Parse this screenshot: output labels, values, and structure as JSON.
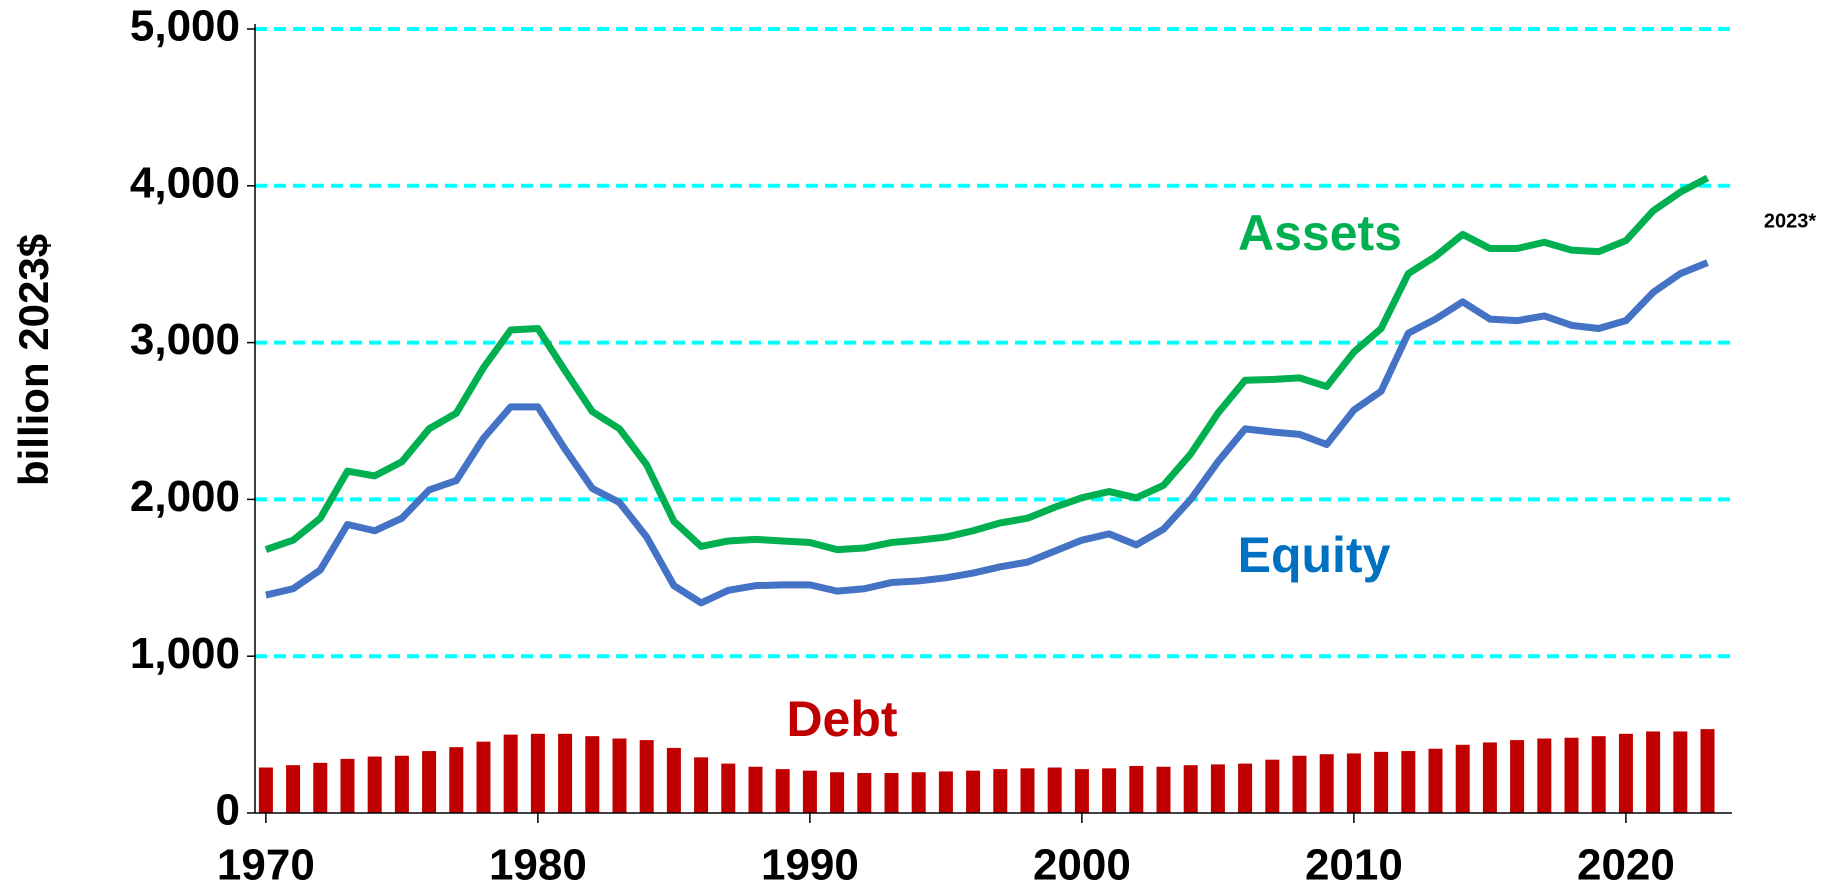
{
  "chart_data": {
    "type": "line",
    "y_label": "billion 2023$",
    "annotation": "2023*",
    "x": [
      1970,
      1971,
      1972,
      1973,
      1974,
      1975,
      1976,
      1977,
      1978,
      1979,
      1980,
      1981,
      1982,
      1983,
      1984,
      1985,
      1986,
      1987,
      1988,
      1989,
      1990,
      1991,
      1992,
      1993,
      1994,
      1995,
      1996,
      1997,
      1998,
      1999,
      2000,
      2001,
      2002,
      2003,
      2004,
      2005,
      2006,
      2007,
      2008,
      2009,
      2010,
      2011,
      2012,
      2013,
      2014,
      2015,
      2016,
      2017,
      2018,
      2019,
      2020,
      2021,
      2022,
      2023
    ],
    "series": [
      {
        "name": "Debt",
        "type": "bar",
        "color": "#c00000",
        "values": [
          290,
          305,
          320,
          345,
          360,
          365,
          395,
          420,
          455,
          500,
          505,
          505,
          490,
          475,
          465,
          415,
          355,
          315,
          295,
          280,
          270,
          260,
          255,
          255,
          260,
          265,
          270,
          280,
          285,
          290,
          280,
          285,
          300,
          295,
          305,
          310,
          315,
          340,
          365,
          375,
          380,
          390,
          395,
          410,
          435,
          450,
          465,
          475,
          480,
          490,
          505,
          520,
          520,
          535
        ]
      },
      {
        "name": "Assets",
        "type": "line",
        "color": "#00b050",
        "values": [
          1680,
          1740,
          1880,
          2180,
          2150,
          2240,
          2450,
          2550,
          2840,
          3080,
          3090,
          2820,
          2560,
          2450,
          2220,
          1860,
          1700,
          1735,
          1745,
          1735,
          1725,
          1680,
          1690,
          1725,
          1740,
          1760,
          1800,
          1850,
          1880,
          1950,
          2010,
          2050,
          2010,
          2090,
          2290,
          2550,
          2760,
          2765,
          2775,
          2720,
          2940,
          3090,
          3440,
          3550,
          3690,
          3600,
          3600,
          3640,
          3590,
          3580,
          3650,
          3840,
          3960,
          4050
        ]
      },
      {
        "name": "Equity",
        "type": "line",
        "color": "#4472c4",
        "values": [
          1390,
          1430,
          1550,
          1840,
          1800,
          1880,
          2060,
          2120,
          2390,
          2590,
          2590,
          2320,
          2070,
          1980,
          1760,
          1450,
          1340,
          1420,
          1450,
          1455,
          1455,
          1415,
          1430,
          1470,
          1480,
          1500,
          1530,
          1570,
          1600,
          1670,
          1740,
          1780,
          1710,
          1810,
          2000,
          2240,
          2450,
          2430,
          2415,
          2350,
          2570,
          2690,
          3060,
          3150,
          3260,
          3150,
          3140,
          3170,
          3110,
          3090,
          3140,
          3320,
          3440,
          3510
        ]
      }
    ],
    "xlim": [
      1969.6,
      2023.9
    ],
    "xticks": [
      1970,
      1980,
      1990,
      2000,
      2010,
      2020
    ],
    "ylim": [
      0,
      5000
    ],
    "yticks": [
      0,
      {
        "value": 1000,
        "label": "1,000"
      },
      {
        "value": 2000,
        "label": "2,000"
      },
      {
        "value": 3000,
        "label": "3,000"
      },
      {
        "value": 4000,
        "label": "4,000"
      },
      {
        "value": 5000,
        "label": "5,000"
      }
    ],
    "grid": true,
    "grid_color": "#00ffff"
  }
}
